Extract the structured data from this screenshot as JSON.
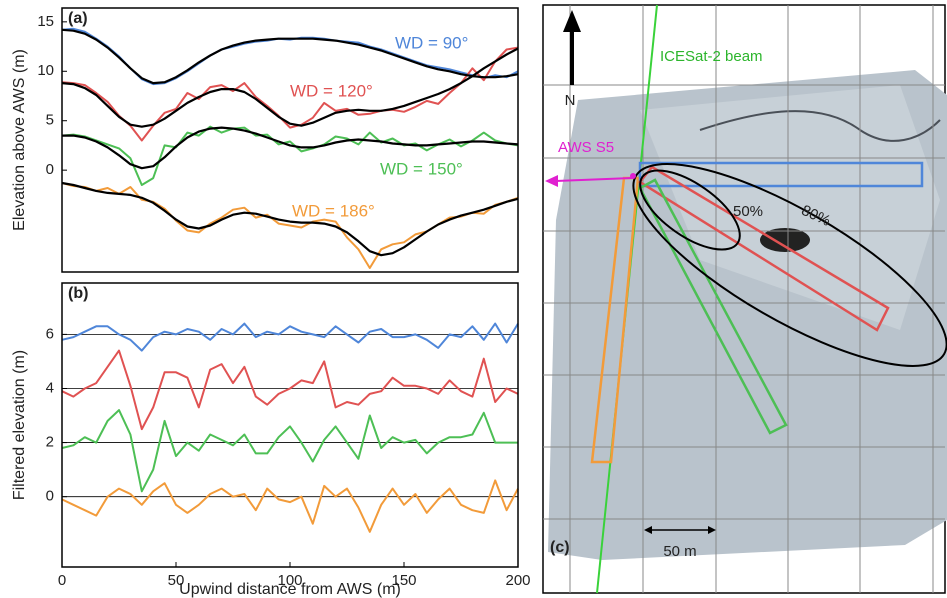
{
  "chart_data": [
    {
      "type": "line",
      "panel_label": "(a)",
      "ylabel": "Elevation  above  AWS  (m)",
      "xlim": [
        0,
        200
      ],
      "ylim": [
        -10.3,
        16.4
      ],
      "yticks": [
        0,
        5,
        10,
        15
      ],
      "grid": false,
      "x": [
        0,
        5,
        10,
        15,
        20,
        25,
        30,
        35,
        40,
        45,
        50,
        55,
        60,
        65,
        70,
        75,
        80,
        85,
        90,
        95,
        100,
        105,
        110,
        115,
        120,
        125,
        130,
        135,
        140,
        145,
        150,
        155,
        160,
        165,
        170,
        175,
        180,
        185,
        190,
        195,
        200
      ],
      "series": [
        {
          "name": "WD = 90°",
          "color": "#4f86d9",
          "values": [
            14.2,
            14.3,
            14.0,
            13.3,
            12.5,
            11.5,
            10.3,
            9.2,
            8.7,
            8.8,
            9.3,
            10.0,
            10.8,
            11.6,
            12.2,
            12.5,
            12.8,
            13.0,
            13.1,
            13.3,
            13.2,
            13.4,
            13.4,
            13.3,
            13.1,
            13.0,
            12.9,
            12.5,
            12.2,
            11.8,
            11.4,
            11.0,
            10.6,
            10.4,
            10.2,
            9.9,
            9.6,
            9.3,
            9.6,
            9.4,
            10.0
          ]
        },
        {
          "name": "WD = 120°",
          "color": "#e05252",
          "values": [
            8.9,
            8.8,
            8.6,
            7.8,
            6.9,
            5.5,
            4.5,
            3.0,
            4.5,
            5.8,
            6.2,
            7.8,
            7.2,
            8.4,
            8.6,
            8.0,
            8.8,
            7.4,
            6.5,
            5.5,
            4.3,
            4.6,
            5.3,
            6.8,
            6.0,
            6.2,
            5.6,
            5.7,
            6.0,
            6.1,
            5.9,
            6.4,
            7.0,
            6.7,
            7.8,
            8.8,
            10.3,
            9.1,
            11.0,
            12.2,
            12.4
          ]
        },
        {
          "name": "WD = 150°",
          "color": "#4dbf55",
          "values": [
            3.5,
            3.6,
            3.4,
            3.0,
            2.6,
            2.2,
            1.2,
            -1.5,
            -0.8,
            2.5,
            2.3,
            3.8,
            3.5,
            4.4,
            3.8,
            4.2,
            4.3,
            3.5,
            3.6,
            2.6,
            2.9,
            1.9,
            2.2,
            2.6,
            3.4,
            3.2,
            2.6,
            3.8,
            2.8,
            3.2,
            2.5,
            2.7,
            2.0,
            2.6,
            3.1,
            2.4,
            3.0,
            3.8,
            3.0,
            2.7,
            2.5
          ]
        },
        {
          "name": "WD = 186°",
          "color": "#f29b3a",
          "values": [
            -1.3,
            -1.6,
            -1.7,
            -2.1,
            -1.8,
            -2.4,
            -1.7,
            -3.0,
            -3.2,
            -3.9,
            -5.1,
            -6.1,
            -6.3,
            -5.4,
            -4.8,
            -4.0,
            -3.8,
            -4.8,
            -4.5,
            -5.4,
            -5.6,
            -5.8,
            -5.2,
            -5.0,
            -5.2,
            -6.8,
            -8.0,
            -9.9,
            -8.0,
            -7.5,
            -7.3,
            -6.5,
            -6.2,
            -5.5,
            -4.8,
            -4.7,
            -4.3,
            -4.4,
            -3.5,
            -3.2,
            -2.8
          ]
        },
        {
          "color": "#000000",
          "values": [
            14.2,
            14.1,
            13.8,
            13.2,
            12.4,
            11.4,
            10.3,
            9.3,
            8.8,
            8.9,
            9.4,
            10.1,
            10.9,
            11.6,
            12.2,
            12.6,
            12.9,
            13.1,
            13.2,
            13.3,
            13.3,
            13.3,
            13.3,
            13.2,
            13.1,
            12.9,
            12.7,
            12.4,
            12.1,
            11.7,
            11.3,
            10.9,
            10.5,
            10.2,
            10.0,
            9.7,
            9.5,
            9.4,
            9.4,
            9.5,
            9.7
          ]
        },
        {
          "color": "#000000",
          "values": [
            8.8,
            8.7,
            8.3,
            7.6,
            6.5,
            5.4,
            4.6,
            4.4,
            4.6,
            5.2,
            6.0,
            6.8,
            7.4,
            7.9,
            8.2,
            8.2,
            7.9,
            7.2,
            6.3,
            5.4,
            4.7,
            4.5,
            4.8,
            5.3,
            5.8,
            6.0,
            6.1,
            6.0,
            6.0,
            6.2,
            6.5,
            6.9,
            7.3,
            7.7,
            8.2,
            8.8,
            9.5,
            10.3,
            11.0,
            11.7,
            12.3
          ]
        },
        {
          "color": "#000000",
          "values": [
            3.5,
            3.5,
            3.3,
            2.9,
            2.3,
            1.5,
            0.6,
            0.2,
            0.4,
            1.3,
            2.4,
            3.3,
            3.9,
            4.2,
            4.3,
            4.2,
            4.0,
            3.7,
            3.3,
            2.9,
            2.5,
            2.3,
            2.3,
            2.5,
            2.8,
            3.0,
            3.1,
            3.0,
            2.9,
            2.7,
            2.6,
            2.5,
            2.5,
            2.6,
            2.7,
            2.8,
            2.9,
            2.9,
            2.8,
            2.7,
            2.6
          ]
        },
        {
          "color": "#000000",
          "values": [
            -1.3,
            -1.5,
            -1.8,
            -2.1,
            -2.3,
            -2.4,
            -2.5,
            -2.8,
            -3.3,
            -4.1,
            -5.0,
            -5.7,
            -5.9,
            -5.6,
            -5.0,
            -4.5,
            -4.3,
            -4.4,
            -4.7,
            -5.0,
            -5.2,
            -5.3,
            -5.3,
            -5.4,
            -5.7,
            -6.3,
            -7.2,
            -8.2,
            -8.6,
            -8.4,
            -7.8,
            -7.0,
            -6.2,
            -5.5,
            -5.0,
            -4.6,
            -4.3,
            -4.0,
            -3.6,
            -3.2,
            -2.9
          ]
        }
      ]
    },
    {
      "type": "line",
      "panel_label": "(b)",
      "ylabel": "Filtered elevation (m)",
      "xlabel": "Upwind distance from AWS (m)",
      "xlim": [
        0,
        200
      ],
      "xticks": [
        0,
        50,
        100,
        150,
        200
      ],
      "ylim": [
        -2.6,
        7.9
      ],
      "yticks": [
        0,
        2,
        4,
        6
      ],
      "grid": true,
      "x": [
        0,
        5,
        10,
        15,
        20,
        25,
        30,
        35,
        40,
        45,
        50,
        55,
        60,
        65,
        70,
        75,
        80,
        85,
        90,
        95,
        100,
        105,
        110,
        115,
        120,
        125,
        130,
        135,
        140,
        145,
        150,
        155,
        160,
        165,
        170,
        175,
        180,
        185,
        190,
        195,
        200
      ],
      "series": [
        {
          "color": "#4f86d9",
          "values": [
            5.8,
            5.9,
            6.1,
            6.3,
            6.3,
            6.0,
            5.8,
            5.4,
            5.9,
            6.1,
            6.0,
            6.2,
            6.1,
            5.8,
            6.2,
            6.0,
            6.4,
            5.9,
            6.1,
            6.0,
            6.3,
            6.1,
            6.0,
            5.9,
            6.3,
            6.0,
            5.7,
            6.1,
            6.2,
            5.9,
            5.9,
            6.0,
            5.8,
            5.5,
            6.0,
            5.9,
            6.3,
            5.8,
            6.4,
            5.7,
            6.4
          ]
        },
        {
          "color": "#e05252",
          "values": [
            3.9,
            3.7,
            4.0,
            4.2,
            4.8,
            5.4,
            4.1,
            2.5,
            3.3,
            4.6,
            4.6,
            4.4,
            3.3,
            4.7,
            4.9,
            4.2,
            4.8,
            3.7,
            3.4,
            3.8,
            4.0,
            4.3,
            4.2,
            5.0,
            3.3,
            3.5,
            3.4,
            3.8,
            3.9,
            4.4,
            4.1,
            4.1,
            4.0,
            3.8,
            4.3,
            3.9,
            3.7,
            5.1,
            3.5,
            4.0,
            3.8
          ]
        },
        {
          "color": "#4dbf55",
          "values": [
            1.8,
            1.9,
            2.2,
            2.0,
            2.8,
            3.2,
            2.3,
            0.2,
            1.0,
            2.8,
            1.5,
            2.0,
            1.7,
            2.3,
            2.1,
            1.9,
            2.3,
            1.6,
            1.6,
            2.2,
            2.6,
            2.0,
            1.3,
            2.1,
            2.6,
            2.0,
            1.4,
            3.0,
            1.8,
            2.2,
            2.0,
            2.1,
            1.6,
            2.0,
            2.2,
            2.2,
            2.3,
            3.1,
            2.0,
            2.0,
            2.0
          ]
        },
        {
          "color": "#f29b3a",
          "values": [
            -0.1,
            -0.3,
            -0.5,
            -0.7,
            0.0,
            0.3,
            0.1,
            -0.3,
            0.2,
            0.5,
            -0.3,
            -0.6,
            -0.3,
            0.1,
            0.3,
            0.0,
            0.1,
            -0.5,
            0.3,
            -0.1,
            -0.2,
            0.0,
            -1.0,
            0.4,
            0.0,
            0.3,
            -0.4,
            -1.3,
            -0.3,
            0.3,
            -0.3,
            0.1,
            -0.6,
            -0.1,
            0.3,
            -0.3,
            -0.5,
            -0.6,
            0.6,
            -0.5,
            0.3
          ]
        }
      ]
    }
  ],
  "map_panel": {
    "panel_label": "(c)",
    "north": "N",
    "beam_label": "ICESat-2 beam",
    "station_label": "AWS S5",
    "contour_labels": [
      "50%",
      "80%"
    ],
    "scale_label": "50 m"
  }
}
